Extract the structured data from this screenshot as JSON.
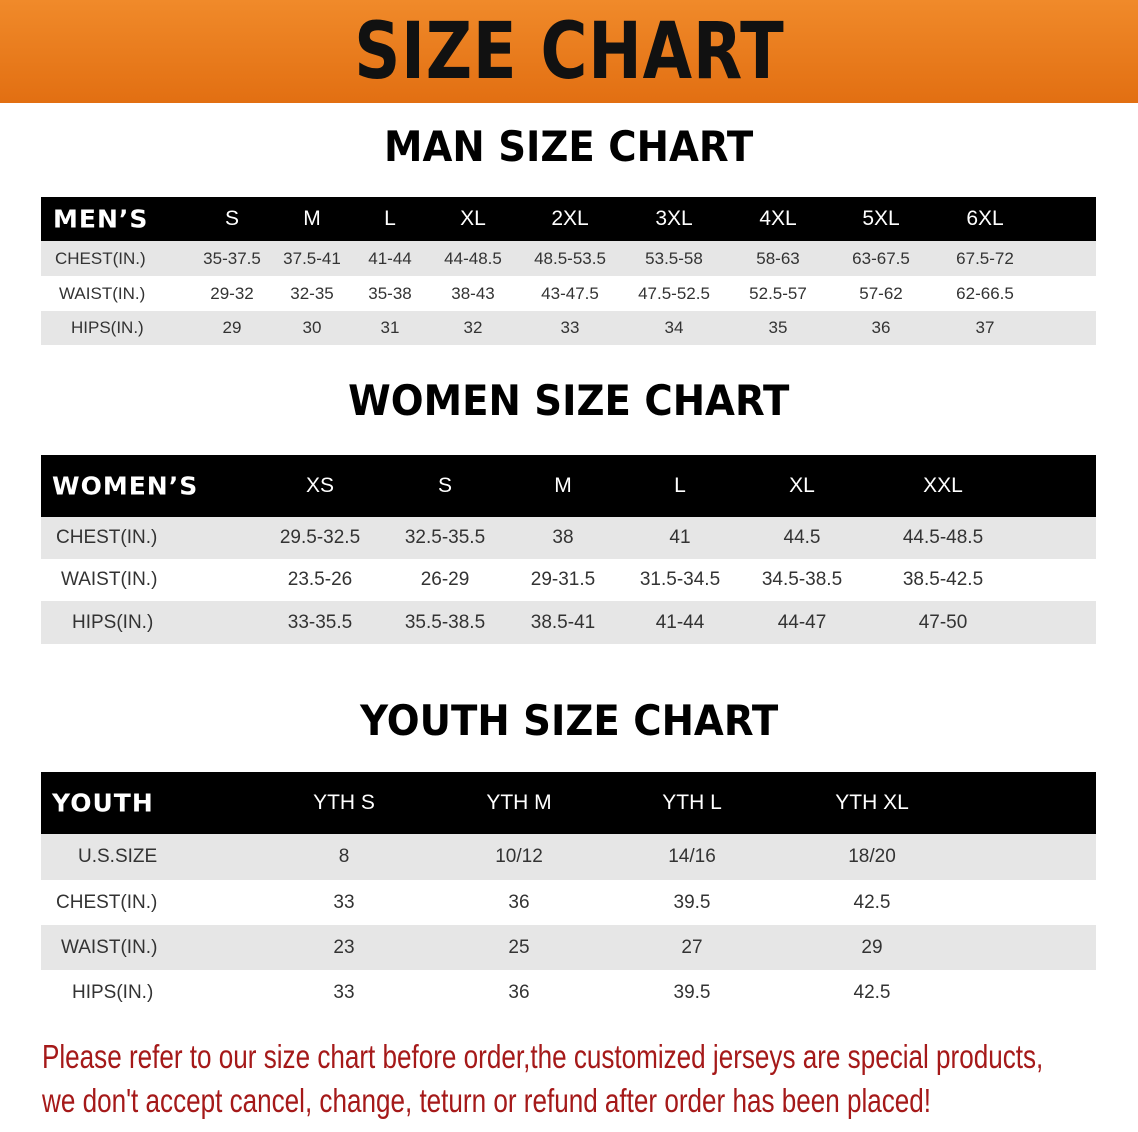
{
  "banner_title": "SIZE CHART",
  "colors": {
    "banner": "#e97b1f",
    "header_row": "#000000",
    "stripe": "#e6e6e6",
    "note": "#a51919"
  },
  "men": {
    "title": "MAN SIZE CHART",
    "header": [
      "MEN’S",
      "S",
      "M",
      "L",
      "XL",
      "2XL",
      "3XL",
      "4XL",
      "5XL",
      "6XL"
    ],
    "rows": [
      [
        "CHEST(IN.)",
        "35-37.5",
        "37.5-41",
        "41-44",
        "44-48.5",
        "48.5-53.5",
        "53.5-58",
        "58-63",
        "63-67.5",
        "67.5-72"
      ],
      [
        "WAIST(IN.)",
        "29-32",
        "32-35",
        "35-38",
        "38-43",
        "43-47.5",
        "47.5-52.5",
        "52.5-57",
        "57-62",
        "62-66.5"
      ],
      [
        "HIPS(IN.)",
        "29",
        "30",
        "31",
        "32",
        "33",
        "34",
        "35",
        "36",
        "37"
      ]
    ]
  },
  "women": {
    "title": "WOMEN SIZE CHART",
    "header": [
      "WOMEN’S",
      "XS",
      "S",
      "M",
      "L",
      "XL",
      "XXL"
    ],
    "rows": [
      [
        "CHEST(IN.)",
        "29.5-32.5",
        "32.5-35.5",
        "38",
        "41",
        "44.5",
        "44.5-48.5"
      ],
      [
        "WAIST(IN.)",
        "23.5-26",
        "26-29",
        "29-31.5",
        "31.5-34.5",
        "34.5-38.5",
        "38.5-42.5"
      ],
      [
        "HIPS(IN.)",
        "33-35.5",
        "35.5-38.5",
        "38.5-41",
        "41-44",
        "44-47",
        "47-50"
      ]
    ]
  },
  "youth": {
    "title": "YOUTH SIZE CHART",
    "header": [
      "YOUTH",
      "YTH S",
      "YTH M",
      "YTH L",
      "YTH XL"
    ],
    "rows": [
      [
        "U.S.SIZE",
        "8",
        "10/12",
        "14/16",
        "18/20"
      ],
      [
        "CHEST(IN.)",
        "33",
        "36",
        "39.5",
        "42.5"
      ],
      [
        "WAIST(IN.)",
        "23",
        "25",
        "27",
        "29"
      ],
      [
        "HIPS(IN.)",
        "33",
        "36",
        "39.5",
        "42.5"
      ]
    ]
  },
  "note": {
    "line1": "Please refer to our size chart before order,the customized jerseys are special products,",
    "line2": "we don't accept cancel, change, teturn or refund after order has been placed!"
  }
}
